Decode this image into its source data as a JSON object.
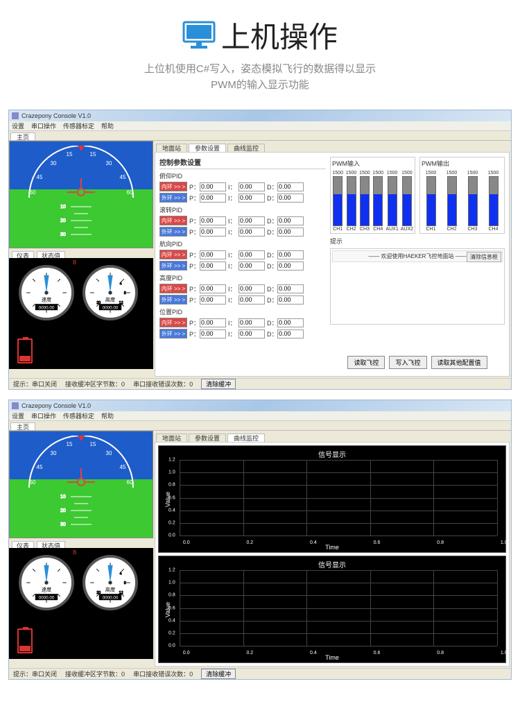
{
  "hero": {
    "title": "上机操作",
    "sub1": "上位机使用C#写入，姿态模拟飞行的数据得以显示",
    "sub2": "PWM的输入显示功能"
  },
  "colors": {
    "accent": "#2a8fd9",
    "sky": "#1e5cc9",
    "ground": "#3cc932",
    "bar_fill": "#1030f0",
    "bar_bg": "#888888",
    "inner_btn": "#d94848",
    "outer_btn": "#4878d9"
  },
  "window": {
    "title": "Crazepony Console V1.0",
    "menus": [
      "设置",
      "串口操作",
      "传感器标定",
      "帮助"
    ],
    "main_tab": "主页",
    "subtabs1": [
      "地面站",
      "参数设置",
      "曲线监控"
    ],
    "subtabs_active1": 1,
    "subtabs_active2": 2,
    "gauge_tabs": [
      "仪表",
      "状态值"
    ],
    "status": {
      "hint_label": "提示：",
      "port": "串口关闭",
      "buf_label": "接收缓冲区字节数：",
      "buf_val": "0",
      "err_label": "串口接收错误次数：",
      "err_val": "0",
      "clear_btn": "清除缓冲"
    }
  },
  "attitude": {
    "arc_ticks": [
      "60",
      "45",
      "30",
      "15",
      "15",
      "30",
      "45",
      "60"
    ]
  },
  "gauges": {
    "g1": {
      "label": "速度",
      "digits": "0000.00"
    },
    "g2": {
      "label": "高度",
      "digits": "0000.00"
    }
  },
  "params": {
    "section_title": "控制参数设置",
    "groups": [
      {
        "name": "俯仰PID"
      },
      {
        "name": "滚转PID"
      },
      {
        "name": "航向PID"
      },
      {
        "name": "高度PID"
      },
      {
        "name": "位置PID"
      }
    ],
    "inner_label": "内环 >> >",
    "outer_label": "外环 >> >",
    "p_label": "P：",
    "i_label": "I：",
    "d_label": "D：",
    "val": "0.00"
  },
  "pwm": {
    "in_title": "PWM输入",
    "out_title": "PWM输出",
    "in_channels": [
      "CH1",
      "CH2",
      "CH3",
      "CH4",
      "AUX1",
      "AUX2"
    ],
    "out_channels": [
      "CH1",
      "CH2",
      "CH3",
      "CH4"
    ],
    "value": "1500"
  },
  "msg": {
    "hint_label": "提示",
    "welcome": "—— 欢迎使用HAEKER飞控地面站 ——",
    "clear": "清除信息框"
  },
  "actions": {
    "read": "读取飞控",
    "write": "写入飞控",
    "readcfg": "读取其他配置值"
  },
  "plot": {
    "title": "信号显示",
    "ylabel": "Value",
    "xlabel": "Time",
    "yticks": [
      "1.2",
      "1.0",
      "0.8",
      "0.6",
      "0.4",
      "0.2",
      "0.0"
    ],
    "xticks": [
      "0.0",
      "0.2",
      "0.4",
      "0.6",
      "0.8",
      "1.0"
    ]
  }
}
